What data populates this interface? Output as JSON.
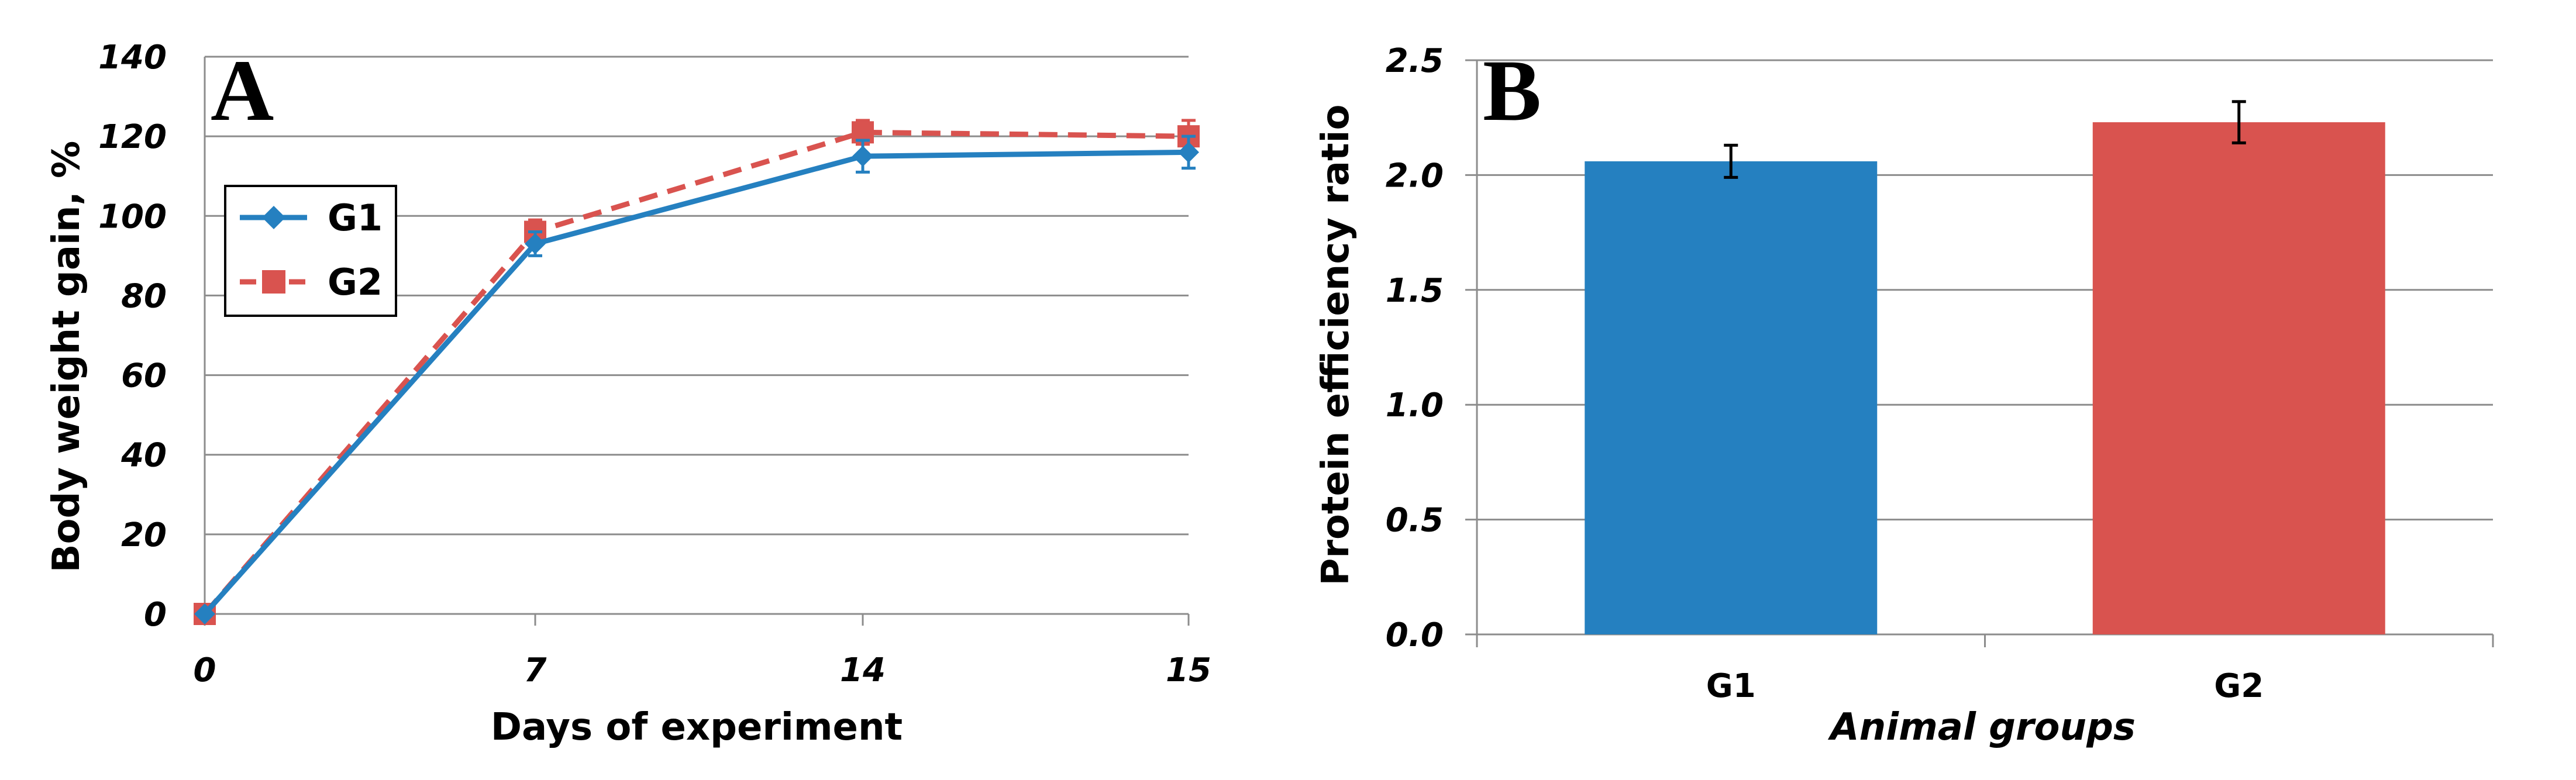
{
  "chart_data": [
    {
      "panel": "A",
      "type": "line",
      "title": "",
      "xlabel": "Days of experiment",
      "ylabel": "Body weight gain, %",
      "categories": [
        "0",
        "7",
        "14",
        "15"
      ],
      "ylim": [
        0,
        140
      ],
      "yticks": [
        0,
        20,
        40,
        60,
        80,
        100,
        120,
        140
      ],
      "grid": true,
      "legend_position": "upper-left",
      "series": [
        {
          "name": "G1",
          "values": [
            0,
            93,
            115,
            116
          ],
          "errors": [
            0,
            3,
            4,
            4
          ],
          "color": "#2580C0",
          "marker": "diamond",
          "dash": "solid"
        },
        {
          "name": "G2",
          "values": [
            0,
            96,
            121,
            120
          ],
          "errors": [
            0,
            3,
            3,
            4
          ],
          "color": "#D9534F",
          "marker": "square",
          "dash": "dashed"
        }
      ]
    },
    {
      "panel": "B",
      "type": "bar",
      "title": "",
      "xlabel": "Animal groups",
      "ylabel": "Protein efficiency ratio",
      "categories": [
        "G1",
        "G2"
      ],
      "values": [
        2.06,
        2.23
      ],
      "errors": [
        0.07,
        0.09
      ],
      "colors": [
        "#2580C0",
        "#D9534F"
      ],
      "ylim": [
        0,
        2.5
      ],
      "yticks": [
        "0.0",
        "0.5",
        "1.0",
        "1.5",
        "2.0",
        "2.5"
      ],
      "grid": true
    }
  ]
}
